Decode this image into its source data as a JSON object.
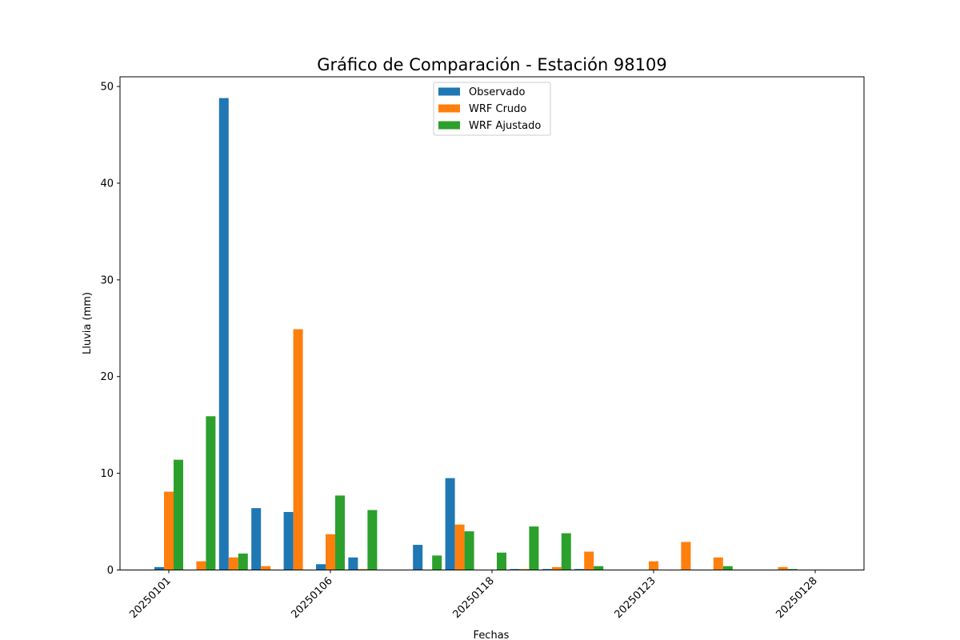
{
  "chart_data": {
    "type": "bar",
    "title": "Gráfico de Comparación - Estación 98109",
    "xlabel": "Fechas",
    "ylabel": "Lluvia (mm)",
    "ylim": [
      0,
      51
    ],
    "yticks": [
      0,
      10,
      20,
      30,
      40,
      50
    ],
    "xticks": [
      {
        "index": 0,
        "label": "20250101"
      },
      {
        "index": 5,
        "label": "20250106"
      },
      {
        "index": 10,
        "label": "20250118"
      },
      {
        "index": 15,
        "label": "20250123"
      },
      {
        "index": 20,
        "label": "20250128"
      }
    ],
    "legend_position": "top-center",
    "grid": false,
    "series": [
      {
        "name": "Observado",
        "color": "#1f77b4",
        "values": [
          0.3,
          0,
          48.8,
          6.4,
          6.0,
          0.6,
          1.3,
          0,
          2.6,
          9.5,
          0,
          0.1,
          0.1,
          0.1,
          0,
          0,
          0,
          0,
          0,
          0,
          0
        ]
      },
      {
        "name": "WRF Crudo",
        "color": "#ff7f0e",
        "values": [
          8.1,
          0.9,
          1.3,
          0.4,
          24.9,
          3.7,
          0.1,
          0,
          0,
          4.7,
          0,
          0.1,
          0.3,
          1.9,
          0,
          0.9,
          2.9,
          1.3,
          0,
          0.3,
          0
        ]
      },
      {
        "name": "WRF Ajustado",
        "color": "#2ca02c",
        "values": [
          11.4,
          15.9,
          1.7,
          0,
          0,
          7.7,
          6.2,
          0,
          1.5,
          4.0,
          1.8,
          4.5,
          3.8,
          0.4,
          0,
          0,
          0,
          0.4,
          0,
          0.1,
          0
        ]
      }
    ]
  }
}
